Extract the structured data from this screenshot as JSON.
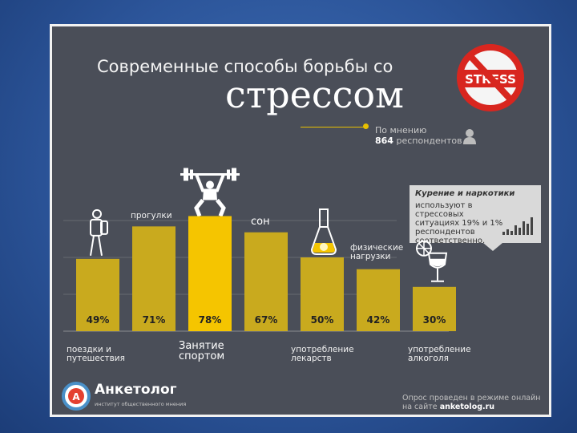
{
  "title": {
    "line1": "Современные способы борьбы со",
    "line2": "стрессом"
  },
  "respondents": {
    "prefix": "По мнению",
    "count": "864",
    "suffix": "респондентов"
  },
  "stress_logo_text": "STRESS",
  "note": {
    "title": "Курение и наркотики",
    "text": "используют в стрессовых ситуациях 19% и 1% респондентов соответственно."
  },
  "logo": {
    "name": "Анкетолог",
    "letter": "А",
    "subtitle": "институт общественного мнения"
  },
  "footer": {
    "line1": "Опрос проведен в режиме онлайн",
    "line2_prefix": "на сайте",
    "site": "anketolog.ru"
  },
  "colors": {
    "bar": "#c9aa1e",
    "bar_highlight": "#f5c500",
    "background": "#4a4e58",
    "accent": "#e8c000"
  },
  "chart_data": {
    "type": "bar",
    "categories": [
      "поездки и путешествия",
      "прогулки",
      "Занятие спортом",
      "сон",
      "употребление лекарств",
      "физические нагрузки",
      "употребление алкоголя"
    ],
    "values": [
      49,
      71,
      78,
      67,
      50,
      42,
      30
    ],
    "value_labels": [
      "49%",
      "71%",
      "78%",
      "67%",
      "50%",
      "42%",
      "30%"
    ],
    "highlight_index": 2,
    "ylim": [
      0,
      100
    ],
    "grid": true
  },
  "icons": [
    "traveler-icon",
    "weightlifter-icon",
    "flask-icon",
    "wine-glass-icon",
    "user-icon",
    "no-stress-icon",
    "anketolog-logo-icon"
  ]
}
